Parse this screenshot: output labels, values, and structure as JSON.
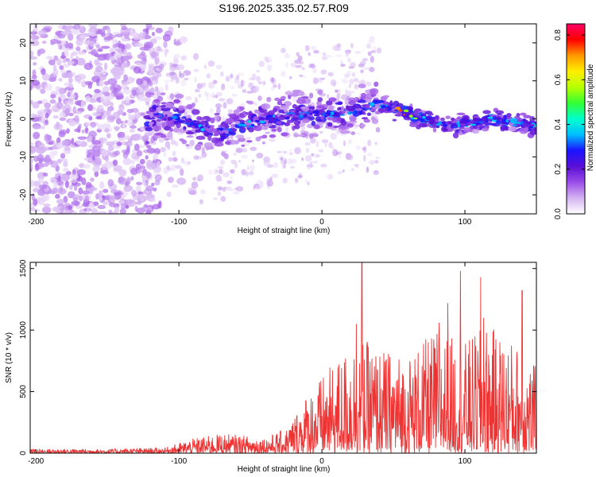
{
  "title": "S196.2025.335.02.57.R09",
  "chart_data": [
    {
      "type": "heatmap",
      "name": "spectrogram",
      "xlabel": "Height of straight line (km)",
      "ylabel": "Frequency (Hz)",
      "xlim": [
        -204,
        150
      ],
      "ylim": [
        -25,
        25
      ],
      "xticks": [
        -200,
        -100,
        0,
        100
      ],
      "xtick_labels": [
        "-200",
        "-100",
        "0",
        "100"
      ],
      "yticks": [
        -20,
        -10,
        0,
        10,
        20
      ],
      "ytick_labels": [
        "-20",
        "-10",
        "0",
        "10",
        "20"
      ],
      "colorbar": {
        "label": "Normalized spectral amplitude",
        "range": [
          0.0,
          0.85
        ],
        "ticks": [
          0.0,
          0.2,
          0.4,
          0.6,
          0.8
        ],
        "tick_labels": [
          "0.0",
          "0.2",
          "0.4",
          "0.6",
          "0.8"
        ],
        "colormap": [
          "#ffffff",
          "#d4b3f2",
          "#9b4de8",
          "#5a0fd6",
          "#1a14ff",
          "#00bfff",
          "#00ffcc",
          "#33ff33",
          "#b8ff00",
          "#ffee00",
          "#ff9900",
          "#ff0000",
          "#ff0066"
        ]
      },
      "ridge": [
        {
          "x": -120,
          "y": 1
        },
        {
          "x": -100,
          "y": 0
        },
        {
          "x": -85,
          "y": -2
        },
        {
          "x": -70,
          "y": -4
        },
        {
          "x": -55,
          "y": -2
        },
        {
          "x": -40,
          "y": 0
        },
        {
          "x": -20,
          "y": 1
        },
        {
          "x": 0,
          "y": 1
        },
        {
          "x": 20,
          "y": 2
        },
        {
          "x": 40,
          "y": 4
        },
        {
          "x": 55,
          "y": 2
        },
        {
          "x": 70,
          "y": 0
        },
        {
          "x": 90,
          "y": -2
        },
        {
          "x": 105,
          "y": -1
        },
        {
          "x": 120,
          "y": 0
        },
        {
          "x": 150,
          "y": -2
        }
      ]
    },
    {
      "type": "line",
      "name": "snr",
      "xlabel": "Height of straight line (km)",
      "ylabel": "SNR (10 * v/v)",
      "xlim": [
        -204,
        150
      ],
      "ylim": [
        0,
        1550
      ],
      "xticks": [
        -200,
        -100,
        0,
        100
      ],
      "xtick_labels": [
        "-200",
        "-100",
        "0",
        "100"
      ],
      "yticks": [
        0,
        500,
        1000,
        1500
      ],
      "ytick_labels": [
        "0",
        "500",
        "1000",
        "1500"
      ],
      "color": "#ee3333",
      "envelope": [
        {
          "x": -204,
          "y": 35
        },
        {
          "x": -150,
          "y": 35
        },
        {
          "x": -110,
          "y": 45
        },
        {
          "x": -90,
          "y": 120
        },
        {
          "x": -70,
          "y": 160
        },
        {
          "x": -40,
          "y": 130
        },
        {
          "x": -25,
          "y": 200
        },
        {
          "x": -10,
          "y": 500
        },
        {
          "x": 10,
          "y": 750
        },
        {
          "x": 25,
          "y": 950
        },
        {
          "x": 40,
          "y": 850
        },
        {
          "x": 60,
          "y": 800
        },
        {
          "x": 80,
          "y": 1000
        },
        {
          "x": 100,
          "y": 900
        },
        {
          "x": 115,
          "y": 1050
        },
        {
          "x": 135,
          "y": 900
        },
        {
          "x": 150,
          "y": 700
        }
      ],
      "peaks": [
        {
          "x": 28,
          "y": 1550
        },
        {
          "x": 97,
          "y": 1480
        },
        {
          "x": 111,
          "y": 1430
        },
        {
          "x": 140,
          "y": 1320
        },
        {
          "x": 24,
          "y": 1050
        },
        {
          "x": 82,
          "y": 1060
        },
        {
          "x": 88,
          "y": 1220
        },
        {
          "x": 113,
          "y": 1100
        }
      ]
    }
  ]
}
